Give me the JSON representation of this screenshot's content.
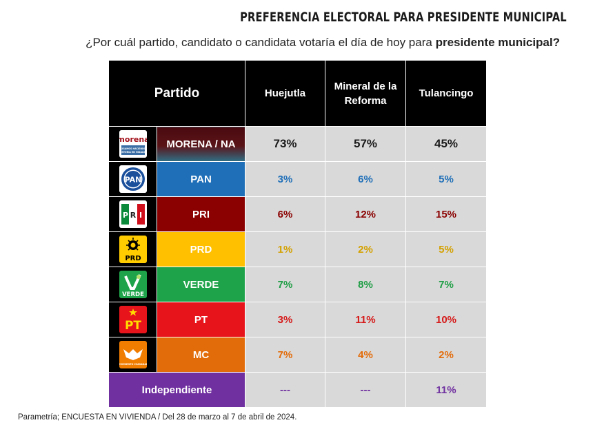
{
  "header": {
    "title": "PREFERENCIA ELECTORAL PARA PRESIDENTE MUNICIPAL",
    "subtitle_prefix": "¿Por cuál partido, candidato o candidata votaría el día de hoy para ",
    "subtitle_bold": "presidente municipal?"
  },
  "chart_data": {
    "type": "table",
    "columns": [
      "Partido",
      "Huejutla",
      "Mineral de la Reforma",
      "Tulancingo"
    ],
    "rows": [
      {
        "party": "MORENA / NA",
        "values": [
          "73%",
          "57%",
          "45%"
        ],
        "color": "#1a1a1a",
        "bg": "#5a0f14",
        "logo": "morena-logo-icon"
      },
      {
        "party": "PAN",
        "values": [
          "3%",
          "6%",
          "5%"
        ],
        "color": "#1f6fb8",
        "bg": "#1f6fb8",
        "logo": "pan-logo-icon"
      },
      {
        "party": "PRI",
        "values": [
          "6%",
          "12%",
          "15%"
        ],
        "color": "#8b0000",
        "bg": "#8b0000",
        "logo": "pri-logo-icon"
      },
      {
        "party": "PRD",
        "values": [
          "1%",
          "2%",
          "5%"
        ],
        "color": "#d4a100",
        "bg": "#ffc000",
        "logo": "prd-logo-icon"
      },
      {
        "party": "VERDE",
        "values": [
          "7%",
          "8%",
          "7%"
        ],
        "color": "#1f9e45",
        "bg": "#1fa34a",
        "logo": "verde-logo-icon"
      },
      {
        "party": "PT",
        "values": [
          "3%",
          "11%",
          "10%"
        ],
        "color": "#d61a1a",
        "bg": "#e8141b",
        "logo": "pt-logo-icon"
      },
      {
        "party": "MC",
        "values": [
          "7%",
          "4%",
          "2%"
        ],
        "color": "#e36c0a",
        "bg": "#e36c0a",
        "logo": "mc-logo-icon"
      },
      {
        "party": "Independiente",
        "values": [
          "---",
          "---",
          "11%"
        ],
        "color": "#7030a0",
        "bg": "#7030a0",
        "logo": ""
      }
    ]
  },
  "logos": {
    "morena": {
      "line1": "morena",
      "line2": "SIGAMOS HACIENDO HISTORIA EN HIDALGO"
    },
    "pan": "PAN",
    "pri": {
      "p": "P",
      "r": "R",
      "i": "I"
    },
    "prd": "PRD",
    "verde": "VERDE",
    "pt": "PT",
    "mc": "MOVIMIENTO CIUDADANO"
  },
  "footnote": "Parametría; ENCUESTA EN VIVIENDA / Del 28 de marzo al 7 de abril de 2024."
}
